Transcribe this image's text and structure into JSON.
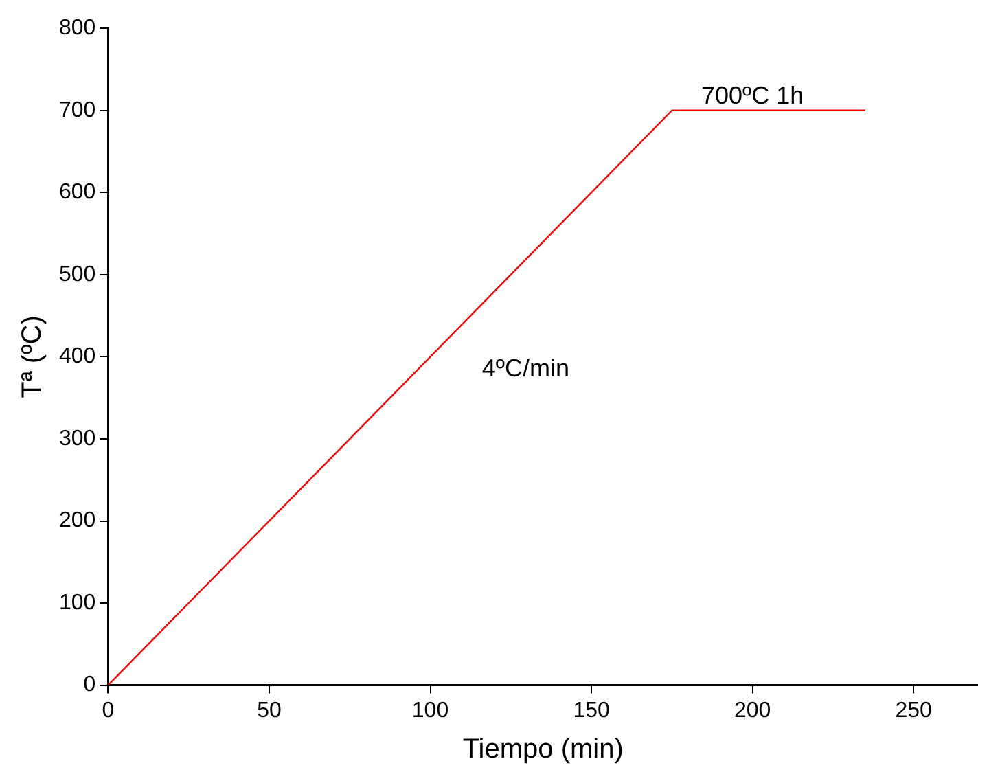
{
  "chart_data": {
    "type": "line",
    "xlabel": "Tiempo (min)",
    "ylabel": "Tª (ºC)",
    "x": [
      0,
      175,
      235
    ],
    "series": [
      {
        "color": "#ff0000",
        "values": [
          0,
          700,
          700
        ]
      }
    ],
    "xlim": [
      0,
      270
    ],
    "xticks": [
      0,
      50,
      100,
      150,
      200,
      250
    ],
    "ylim": [
      0,
      800
    ],
    "yticks": [
      0,
      100,
      200,
      300,
      400,
      500,
      600,
      700,
      800
    ],
    "grid": false,
    "legend": false,
    "marker": "none",
    "line_style": "solid",
    "annotations": [
      {
        "text": "700ºC 1h",
        "x": 200,
        "y": 700
      },
      "4ºC/min"
    ]
  }
}
